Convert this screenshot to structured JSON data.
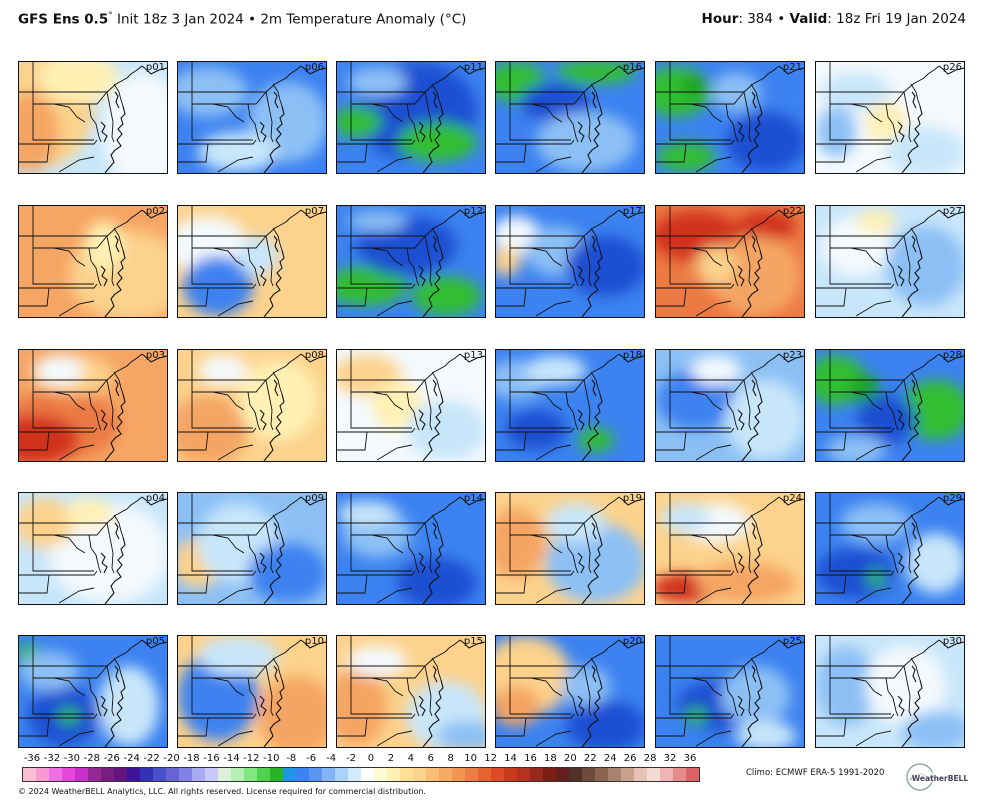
{
  "header": {
    "model": "GFS Ens 0.5",
    "degree": "°",
    "init": " Init 18z 3 Jan 2024",
    "sep": " • ",
    "field": "2m Temperature Anomaly (",
    "unit": "°C",
    "field_close": ")",
    "hour_label": "Hour",
    "hour_value": ": 384 ",
    "bullet": "• ",
    "valid_label": "Valid",
    "valid_value": ": 18z Fri 19 Jan 2024"
  },
  "colors": {
    "dark_blue": "#1e50d2",
    "blue": "#3c82f0",
    "light_blue": "#8cc0f5",
    "pale_blue": "#c8e6fa",
    "white": "#f4f9fd",
    "pale_yellow": "#fff0b4",
    "light_orange": "#fcd28c",
    "orange": "#f5a564",
    "dark_orange": "#ec7a44",
    "red": "#d2321e",
    "green": "#32be32",
    "dark_green": "#1ea01e"
  },
  "members": [
    {
      "label": "p01",
      "base": "pale_blue",
      "blobs": [
        [
          "light_orange",
          25,
          45,
          50,
          60
        ],
        [
          "orange",
          10,
          70,
          30,
          40
        ],
        [
          "pale_yellow",
          60,
          15,
          40,
          25
        ],
        [
          "white",
          125,
          70,
          40,
          60
        ]
      ]
    },
    {
      "label": "p02",
      "base": "orange",
      "blobs": [
        [
          "light_orange",
          110,
          70,
          60,
          45
        ],
        [
          "pale_yellow",
          85,
          40,
          20,
          25
        ]
      ]
    },
    {
      "label": "p03",
      "base": "orange",
      "blobs": [
        [
          "dark_orange",
          40,
          75,
          60,
          35
        ],
        [
          "red",
          15,
          90,
          45,
          25
        ],
        [
          "light_orange",
          55,
          25,
          40,
          20
        ],
        [
          "white",
          40,
          20,
          25,
          15
        ]
      ]
    },
    {
      "label": "p04",
      "base": "pale_blue",
      "blobs": [
        [
          "white",
          90,
          60,
          60,
          50
        ],
        [
          "light_orange",
          25,
          30,
          30,
          25
        ],
        [
          "pale_yellow",
          70,
          20,
          25,
          15
        ]
      ]
    },
    {
      "label": "p05",
      "base": "blue",
      "blobs": [
        [
          "dark_blue",
          45,
          80,
          35,
          30
        ],
        [
          "green",
          50,
          80,
          12,
          8
        ],
        [
          "green",
          10,
          20,
          12,
          12
        ],
        [
          "light_blue",
          30,
          35,
          30,
          20
        ],
        [
          "pale_blue",
          110,
          70,
          30,
          40
        ]
      ]
    },
    {
      "label": "p06",
      "base": "blue",
      "blobs": [
        [
          "light_blue",
          30,
          30,
          40,
          25
        ],
        [
          "light_blue",
          110,
          60,
          40,
          40
        ],
        [
          "pale_blue",
          60,
          90,
          40,
          20
        ]
      ]
    },
    {
      "label": "p07",
      "base": "light_orange",
      "blobs": [
        [
          "white",
          30,
          40,
          40,
          30
        ],
        [
          "blue",
          40,
          80,
          35,
          30
        ],
        [
          "pale_blue",
          80,
          50,
          20,
          20
        ]
      ]
    },
    {
      "label": "p08",
      "base": "light_orange",
      "blobs": [
        [
          "orange",
          30,
          80,
          40,
          35
        ],
        [
          "pale_yellow",
          100,
          50,
          40,
          40
        ],
        [
          "white",
          45,
          20,
          25,
          15
        ]
      ]
    },
    {
      "label": "p09",
      "base": "light_blue",
      "blobs": [
        [
          "light_orange",
          20,
          70,
          25,
          25
        ],
        [
          "pale_blue",
          60,
          50,
          40,
          40
        ],
        [
          "blue",
          110,
          80,
          40,
          30
        ]
      ]
    },
    {
      "label": "p10",
      "base": "light_orange",
      "blobs": [
        [
          "blue",
          40,
          60,
          40,
          45
        ],
        [
          "pale_blue",
          60,
          20,
          40,
          20
        ],
        [
          "orange",
          120,
          80,
          40,
          40
        ]
      ]
    },
    {
      "label": "p11",
      "base": "blue",
      "blobs": [
        [
          "dark_blue",
          80,
          50,
          60,
          50
        ],
        [
          "green",
          20,
          60,
          25,
          15
        ],
        [
          "green",
          100,
          80,
          40,
          20
        ],
        [
          "light_blue",
          40,
          20,
          30,
          15
        ]
      ]
    },
    {
      "label": "p12",
      "base": "blue",
      "blobs": [
        [
          "green",
          30,
          80,
          40,
          20
        ],
        [
          "green",
          110,
          90,
          35,
          20
        ],
        [
          "dark_blue",
          70,
          40,
          50,
          30
        ],
        [
          "light_blue",
          40,
          15,
          30,
          10
        ]
      ]
    },
    {
      "label": "p13",
      "base": "white",
      "blobs": [
        [
          "light_orange",
          30,
          25,
          35,
          20
        ],
        [
          "pale_yellow",
          60,
          55,
          25,
          25
        ],
        [
          "pale_blue",
          110,
          80,
          40,
          30
        ]
      ]
    },
    {
      "label": "p14",
      "base": "blue",
      "blobs": [
        [
          "light_blue",
          40,
          40,
          35,
          25
        ],
        [
          "pale_blue",
          30,
          20,
          30,
          12
        ],
        [
          "dark_blue",
          100,
          90,
          40,
          25
        ]
      ]
    },
    {
      "label": "p15",
      "base": "light_orange",
      "blobs": [
        [
          "orange",
          20,
          70,
          30,
          40
        ],
        [
          "white",
          40,
          25,
          30,
          15
        ],
        [
          "pale_blue",
          110,
          80,
          40,
          35
        ],
        [
          "light_blue",
          130,
          100,
          30,
          15
        ]
      ]
    },
    {
      "label": "p16",
      "base": "blue",
      "blobs": [
        [
          "green",
          20,
          20,
          30,
          20
        ],
        [
          "green",
          100,
          10,
          40,
          12
        ],
        [
          "dark_blue",
          60,
          40,
          35,
          20
        ],
        [
          "light_blue",
          90,
          80,
          50,
          30
        ]
      ]
    },
    {
      "label": "p17",
      "base": "blue",
      "blobs": [
        [
          "white",
          20,
          30,
          25,
          20
        ],
        [
          "light_orange",
          10,
          55,
          15,
          15
        ],
        [
          "light_blue",
          60,
          45,
          30,
          25
        ],
        [
          "dark_blue",
          110,
          60,
          40,
          30
        ]
      ]
    },
    {
      "label": "p18",
      "base": "blue",
      "blobs": [
        [
          "light_blue",
          20,
          30,
          30,
          20
        ],
        [
          "pale_blue",
          60,
          20,
          30,
          15
        ],
        [
          "green",
          100,
          90,
          18,
          12
        ],
        [
          "dark_blue",
          40,
          80,
          30,
          20
        ]
      ]
    },
    {
      "label": "p19",
      "base": "light_orange",
      "blobs": [
        [
          "orange",
          20,
          50,
          30,
          35
        ],
        [
          "light_blue",
          100,
          70,
          50,
          40
        ],
        [
          "pale_blue",
          80,
          30,
          30,
          20
        ]
      ]
    },
    {
      "label": "p20",
      "base": "blue",
      "blobs": [
        [
          "light_orange",
          30,
          40,
          45,
          40
        ],
        [
          "orange",
          20,
          70,
          25,
          20
        ],
        [
          "dark_blue",
          110,
          90,
          40,
          25
        ],
        [
          "light_blue",
          90,
          50,
          25,
          20
        ]
      ]
    },
    {
      "label": "p21",
      "base": "blue",
      "blobs": [
        [
          "green",
          20,
          30,
          35,
          25
        ],
        [
          "green",
          30,
          95,
          30,
          15
        ],
        [
          "dark_green",
          40,
          25,
          15,
          10
        ],
        [
          "dark_blue",
          110,
          80,
          40,
          30
        ],
        [
          "light_blue",
          80,
          30,
          25,
          20
        ]
      ]
    },
    {
      "label": "p22",
      "base": "dark_orange",
      "blobs": [
        [
          "red",
          40,
          30,
          45,
          25
        ],
        [
          "red",
          110,
          20,
          30,
          15
        ],
        [
          "orange",
          100,
          70,
          45,
          40
        ],
        [
          "light_orange",
          60,
          60,
          20,
          20
        ]
      ]
    },
    {
      "label": "p23",
      "base": "light_blue",
      "blobs": [
        [
          "blue",
          40,
          50,
          40,
          30
        ],
        [
          "pale_blue",
          110,
          70,
          40,
          40
        ],
        [
          "white",
          60,
          20,
          25,
          15
        ]
      ]
    },
    {
      "label": "p24",
      "base": "light_orange",
      "blobs": [
        [
          "red",
          30,
          95,
          35,
          15
        ],
        [
          "orange",
          90,
          90,
          50,
          20
        ],
        [
          "white",
          60,
          30,
          35,
          20
        ],
        [
          "pale_blue",
          30,
          25,
          25,
          15
        ]
      ]
    },
    {
      "label": "p25",
      "base": "blue",
      "blobs": [
        [
          "dark_blue",
          60,
          70,
          40,
          25
        ],
        [
          "green",
          40,
          80,
          12,
          8
        ],
        [
          "light_blue",
          100,
          60,
          35,
          30
        ],
        [
          "pale_blue",
          110,
          100,
          30,
          15
        ]
      ]
    },
    {
      "label": "p26",
      "base": "white",
      "blobs": [
        [
          "pale_blue",
          40,
          30,
          35,
          20
        ],
        [
          "light_blue",
          20,
          70,
          20,
          25
        ],
        [
          "pale_yellow",
          70,
          60,
          20,
          20
        ],
        [
          "pale_blue",
          110,
          90,
          40,
          25
        ]
      ]
    },
    {
      "label": "p27",
      "base": "pale_blue",
      "blobs": [
        [
          "white",
          40,
          40,
          35,
          30
        ],
        [
          "light_blue",
          110,
          60,
          40,
          40
        ],
        [
          "pale_yellow",
          60,
          15,
          20,
          12
        ]
      ]
    },
    {
      "label": "p28",
      "base": "blue",
      "blobs": [
        [
          "green",
          20,
          30,
          30,
          25
        ],
        [
          "green",
          120,
          60,
          35,
          30
        ],
        [
          "dark_green",
          50,
          40,
          15,
          15
        ],
        [
          "dark_blue",
          70,
          70,
          30,
          25
        ],
        [
          "light_blue",
          40,
          100,
          30,
          15
        ]
      ]
    },
    {
      "label": "p29",
      "base": "blue",
      "blobs": [
        [
          "dark_blue",
          40,
          80,
          40,
          25
        ],
        [
          "green",
          60,
          85,
          10,
          8
        ],
        [
          "light_blue",
          60,
          30,
          35,
          20
        ],
        [
          "pale_blue",
          120,
          70,
          30,
          30
        ]
      ]
    },
    {
      "label": "p30",
      "base": "pale_blue",
      "blobs": [
        [
          "light_blue",
          30,
          50,
          30,
          40
        ],
        [
          "white",
          90,
          50,
          40,
          40
        ],
        [
          "light_blue",
          120,
          95,
          35,
          20
        ]
      ]
    }
  ],
  "colorbar": {
    "ticks": [
      "-36",
      "-32",
      "-30",
      "-28",
      "-26",
      "-24",
      "-22",
      "-20",
      "-18",
      "-16",
      "-14",
      "-12",
      "-10",
      "-8",
      "-6",
      "-4",
      "-2",
      "0",
      "2",
      "4",
      "6",
      "8",
      "10",
      "12",
      "14",
      "16",
      "18",
      "20",
      "22",
      "24",
      "26",
      "28",
      "32",
      "36"
    ],
    "swatches": [
      "#fabed2",
      "#f59bd2",
      "#f06ee6",
      "#e646dc",
      "#c832c8",
      "#962896",
      "#781e82",
      "#64147d",
      "#3c1496",
      "#3232b4",
      "#4650c8",
      "#6464d2",
      "#8282e6",
      "#aaaaf0",
      "#c8c8fa",
      "#dcf0dc",
      "#b4f0b4",
      "#82e682",
      "#50d250",
      "#28b428",
      "#1e96e6",
      "#3c82f0",
      "#5a96f0",
      "#82b4f5",
      "#aad2fa",
      "#d2ebfc",
      "#ffffff",
      "#fffad2",
      "#fff0b4",
      "#ffe196",
      "#fcd28c",
      "#f8be78",
      "#f5aa64",
      "#f09650",
      "#eb7d46",
      "#e66432",
      "#dc4b28",
      "#c83c1e",
      "#b4321e",
      "#96281e",
      "#7d1e14",
      "#641e1e",
      "#503228",
      "#6e4b3c",
      "#8c6450",
      "#aa8270",
      "#c8a08c",
      "#e6c3b4",
      "#f5dcd2",
      "#f0b4b4",
      "#e68c8c",
      "#dc6464"
    ]
  },
  "footer": {
    "climo": "Climo: ECMWF ERA-5 1991-2020",
    "copyright": "© 2024 WeatherBELL Analytics, LLC. All rights reserved. License required for commercial distribution.",
    "logo_text": "WeatherBELL"
  }
}
